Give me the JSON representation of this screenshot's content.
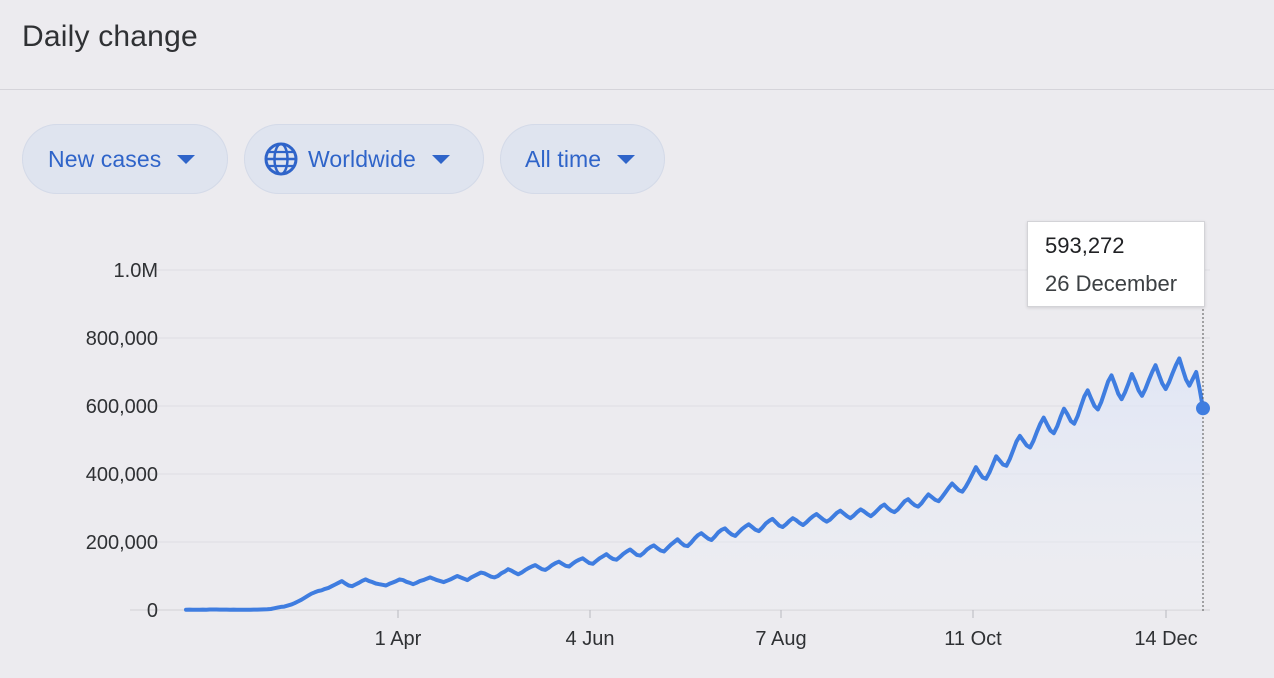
{
  "header": {
    "title": "Daily change"
  },
  "filters": [
    {
      "label": "New cases"
    },
    {
      "label": "Worldwide"
    },
    {
      "label": "All time"
    }
  ],
  "tooltip": {
    "value": "593,272",
    "date": "26 December"
  },
  "chart_data": {
    "type": "area",
    "title": "Daily change",
    "xlabel": "",
    "ylabel": "",
    "ylim": [
      0,
      1000000
    ],
    "y_ticks": [
      0,
      200000,
      400000,
      600000,
      800000,
      1000000
    ],
    "y_tick_labels": [
      "0",
      "200,000",
      "400,000",
      "600,000",
      "800,000",
      "1.0M"
    ],
    "x_tick_labels": [
      "1 Apr",
      "4 Jun",
      "7 Aug",
      "11 Oct",
      "14 Dec"
    ],
    "grid": true,
    "color": "#3f7de0",
    "fill_color": "#e3e8f7",
    "series": [
      {
        "values": [
          1000,
          1200,
          1000,
          900,
          1000,
          1100,
          1000,
          1500,
          1600,
          1400,
          1300,
          1200,
          1100,
          1000,
          1200,
          900,
          800,
          700,
          800,
          900,
          1100,
          1200,
          1500,
          1800,
          2200,
          3000,
          5000,
          7000,
          9000,
          10000,
          13000,
          16000,
          20000,
          25000,
          30000,
          36000,
          42000,
          48000,
          52000,
          56000,
          58000,
          62000,
          65000,
          70000,
          75000,
          80000,
          85000,
          78000,
          72000,
          70000,
          75000,
          80000,
          86000,
          90000,
          85000,
          82000,
          78000,
          76000,
          74000,
          72000,
          77000,
          81000,
          85000,
          90000,
          88000,
          83000,
          80000,
          76000,
          80000,
          85000,
          88000,
          92000,
          96000,
          92000,
          88000,
          85000,
          82000,
          86000,
          90000,
          95000,
          100000,
          96000,
          92000,
          88000,
          95000,
          100000,
          105000,
          110000,
          108000,
          103000,
          98000,
          96000,
          100000,
          108000,
          113000,
          120000,
          116000,
          110000,
          105000,
          110000,
          117000,
          123000,
          128000,
          132000,
          126000,
          120000,
          118000,
          124000,
          132000,
          138000,
          142000,
          136000,
          130000,
          128000,
          136000,
          143000,
          148000,
          152000,
          145000,
          138000,
          136000,
          144000,
          152000,
          158000,
          164000,
          156000,
          150000,
          148000,
          156000,
          165000,
          172000,
          178000,
          170000,
          162000,
          160000,
          168000,
          178000,
          185000,
          190000,
          182000,
          175000,
          172000,
          182000,
          192000,
          200000,
          208000,
          198000,
          190000,
          188000,
          198000,
          210000,
          220000,
          226000,
          218000,
          210000,
          206000,
          216000,
          228000,
          236000,
          240000,
          230000,
          222000,
          218000,
          228000,
          238000,
          246000,
          252000,
          244000,
          236000,
          232000,
          242000,
          254000,
          262000,
          268000,
          258000,
          248000,
          244000,
          252000,
          262000,
          270000,
          264000,
          256000,
          250000,
          258000,
          268000,
          276000,
          282000,
          274000,
          266000,
          260000,
          266000,
          276000,
          286000,
          292000,
          284000,
          276000,
          270000,
          278000,
          288000,
          296000,
          290000,
          282000,
          276000,
          284000,
          294000,
          304000,
          310000,
          300000,
          292000,
          288000,
          296000,
          308000,
          320000,
          326000,
          316000,
          308000,
          304000,
          314000,
          328000,
          340000,
          332000,
          324000,
          320000,
          332000,
          346000,
          360000,
          372000,
          362000,
          352000,
          348000,
          362000,
          380000,
          400000,
          420000,
          404000,
          390000,
          386000,
          404000,
          428000,
          452000,
          440000,
          428000,
          424000,
          444000,
          470000,
          496000,
          512000,
          498000,
          484000,
          478000,
          498000,
          524000,
          548000,
          566000,
          546000,
          528000,
          520000,
          540000,
          568000,
          592000,
          576000,
          556000,
          548000,
          570000,
          600000,
          628000,
          646000,
          622000,
          600000,
          590000,
          612000,
          642000,
          672000,
          690000,
          664000,
          636000,
          620000,
          640000,
          666000,
          694000,
          672000,
          646000,
          630000,
          650000,
          676000,
          700000,
          720000,
          692000,
          666000,
          650000,
          670000,
          696000,
          720000,
          740000,
          708000,
          678000,
          660000,
          680000,
          700000,
          650000,
          593272
        ]
      }
    ]
  }
}
